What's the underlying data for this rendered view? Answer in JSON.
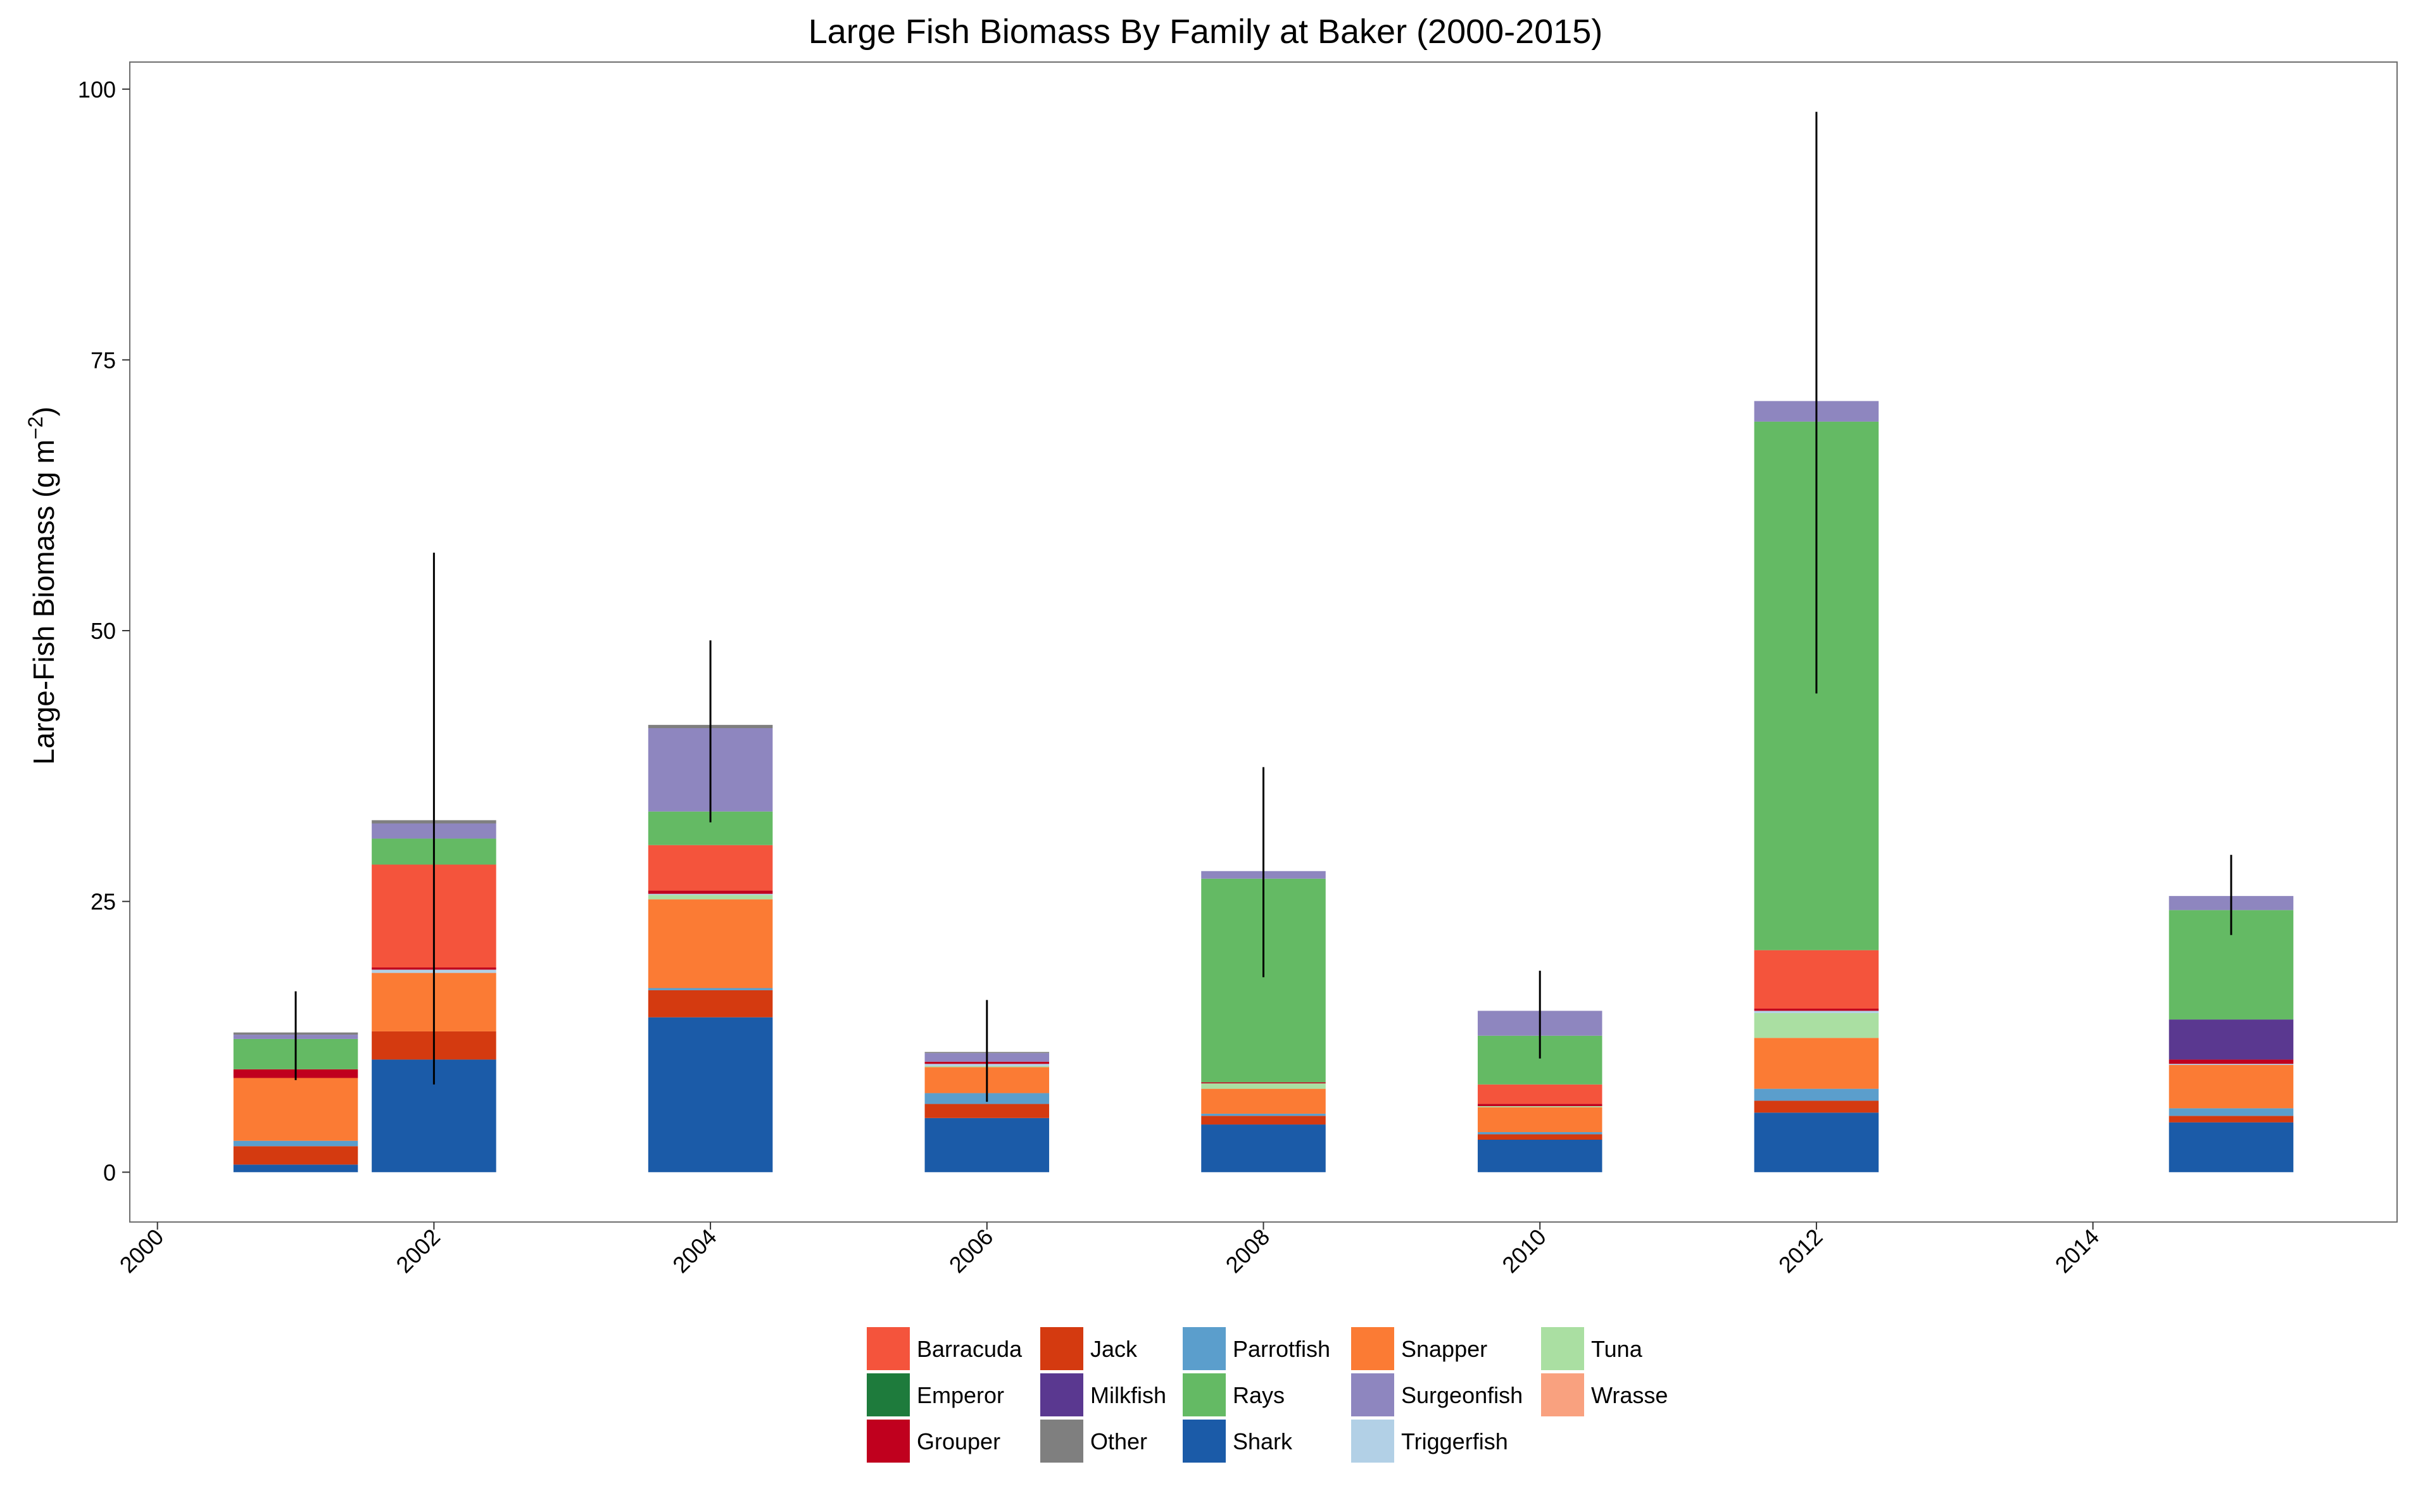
{
  "chart_data": {
    "type": "bar",
    "stacked": true,
    "title": "Large Fish Biomass By Family at Baker (2000-2015)",
    "ylabel": "Large-Fish Biomass (g m",
    "ylabel_superscript": "−2",
    "ylabel_suffix": ")",
    "xlabel": "",
    "xlim": [
      1999.8,
      2016.2
    ],
    "ylim": [
      -4.6,
      102.5
    ],
    "x_ticks": [
      2000,
      2002,
      2004,
      2006,
      2008,
      2010,
      2012,
      2014
    ],
    "y_ticks": [
      0,
      25,
      50,
      75,
      100
    ],
    "grid": false,
    "legend_position": "bottom",
    "bar_width_years": 0.9,
    "x": [
      2001,
      2002,
      2004,
      2006,
      2008,
      2010,
      2012,
      2015
    ],
    "legend_order": [
      "Barracuda",
      "Emperor",
      "Grouper",
      "Jack",
      "Milkfish",
      "Other",
      "Parrotfish",
      "Rays",
      "Shark",
      "Snapper",
      "Surgeonfish",
      "Triggerfish",
      "Tuna",
      "Wrasse"
    ],
    "stack_order": [
      "Shark",
      "Jack",
      "Parrotfish",
      "Snapper",
      "Tuna",
      "Triggerfish",
      "Grouper",
      "Milkfish",
      "Barracuda",
      "Rays",
      "Surgeonfish",
      "Other"
    ],
    "series": [
      {
        "name": "Barracuda",
        "color": "#f4543c",
        "values": [
          0,
          9.5,
          4.2,
          0,
          0,
          1.8,
          5.4,
          0
        ]
      },
      {
        "name": "Emperor",
        "color": "#1e7b3c",
        "values": [
          0,
          0,
          0,
          0,
          0,
          0,
          0,
          0
        ]
      },
      {
        "name": "Grouper",
        "color": "#c0001e",
        "values": [
          0.8,
          0.2,
          0.3,
          0.2,
          0.1,
          0.2,
          0.2,
          0.4
        ]
      },
      {
        "name": "Jack",
        "color": "#d43a10",
        "values": [
          1.7,
          2.6,
          2.5,
          1.3,
          0.8,
          0.5,
          1.1,
          0.6
        ]
      },
      {
        "name": "Milkfish",
        "color": "#5a3890",
        "values": [
          0,
          0,
          0,
          0,
          0,
          0,
          0,
          3.7
        ]
      },
      {
        "name": "Other",
        "color": "#7f7f7f",
        "values": [
          0.2,
          0.3,
          0.3,
          0.1,
          0,
          0,
          0,
          0
        ]
      },
      {
        "name": "Parrotfish",
        "color": "#5b9ecc",
        "values": [
          0.5,
          0,
          0.2,
          1.0,
          0.2,
          0.2,
          1.1,
          0.7
        ]
      },
      {
        "name": "Rays",
        "color": "#64ba64",
        "values": [
          2.8,
          2.4,
          3.1,
          0,
          18.8,
          4.5,
          48.8,
          10.1
        ]
      },
      {
        "name": "Shark",
        "color": "#1b5ba8",
        "values": [
          0.7,
          10.4,
          14.3,
          5.0,
          4.4,
          3.0,
          5.5,
          4.6
        ]
      },
      {
        "name": "Snapper",
        "color": "#fb7b34",
        "values": [
          5.8,
          5.4,
          8.2,
          2.4,
          2.3,
          2.3,
          4.7,
          4.0
        ]
      },
      {
        "name": "Surgeonfish",
        "color": "#8e86bf",
        "values": [
          0.4,
          1.4,
          7.7,
          0.8,
          0.7,
          2.3,
          1.9,
          1.3
        ]
      },
      {
        "name": "Triggerfish",
        "color": "#b2d0e6",
        "values": [
          0,
          0.3,
          0.1,
          0.2,
          0,
          0,
          0.2,
          0.1
        ]
      },
      {
        "name": "Tuna",
        "color": "#aadfa2",
        "values": [
          0,
          0,
          0.4,
          0.1,
          0.5,
          0.1,
          2.3,
          0
        ]
      },
      {
        "name": "Wrasse",
        "color": "#f9a17f",
        "values": [
          0,
          0,
          0,
          0,
          0,
          0,
          0,
          0
        ]
      }
    ],
    "error_bars": [
      {
        "x": 2001,
        "low": 8.5,
        "high": 16.7
      },
      {
        "x": 2002,
        "low": 8.1,
        "high": 57.2
      },
      {
        "x": 2004,
        "low": 32.3,
        "high": 49.1
      },
      {
        "x": 2006,
        "low": 6.5,
        "high": 15.9
      },
      {
        "x": 2008,
        "low": 18.0,
        "high": 37.4
      },
      {
        "x": 2010,
        "low": 10.5,
        "high": 18.6
      },
      {
        "x": 2012,
        "low": 44.2,
        "high": 97.9
      },
      {
        "x": 2015,
        "low": 21.9,
        "high": 29.3
      }
    ]
  }
}
